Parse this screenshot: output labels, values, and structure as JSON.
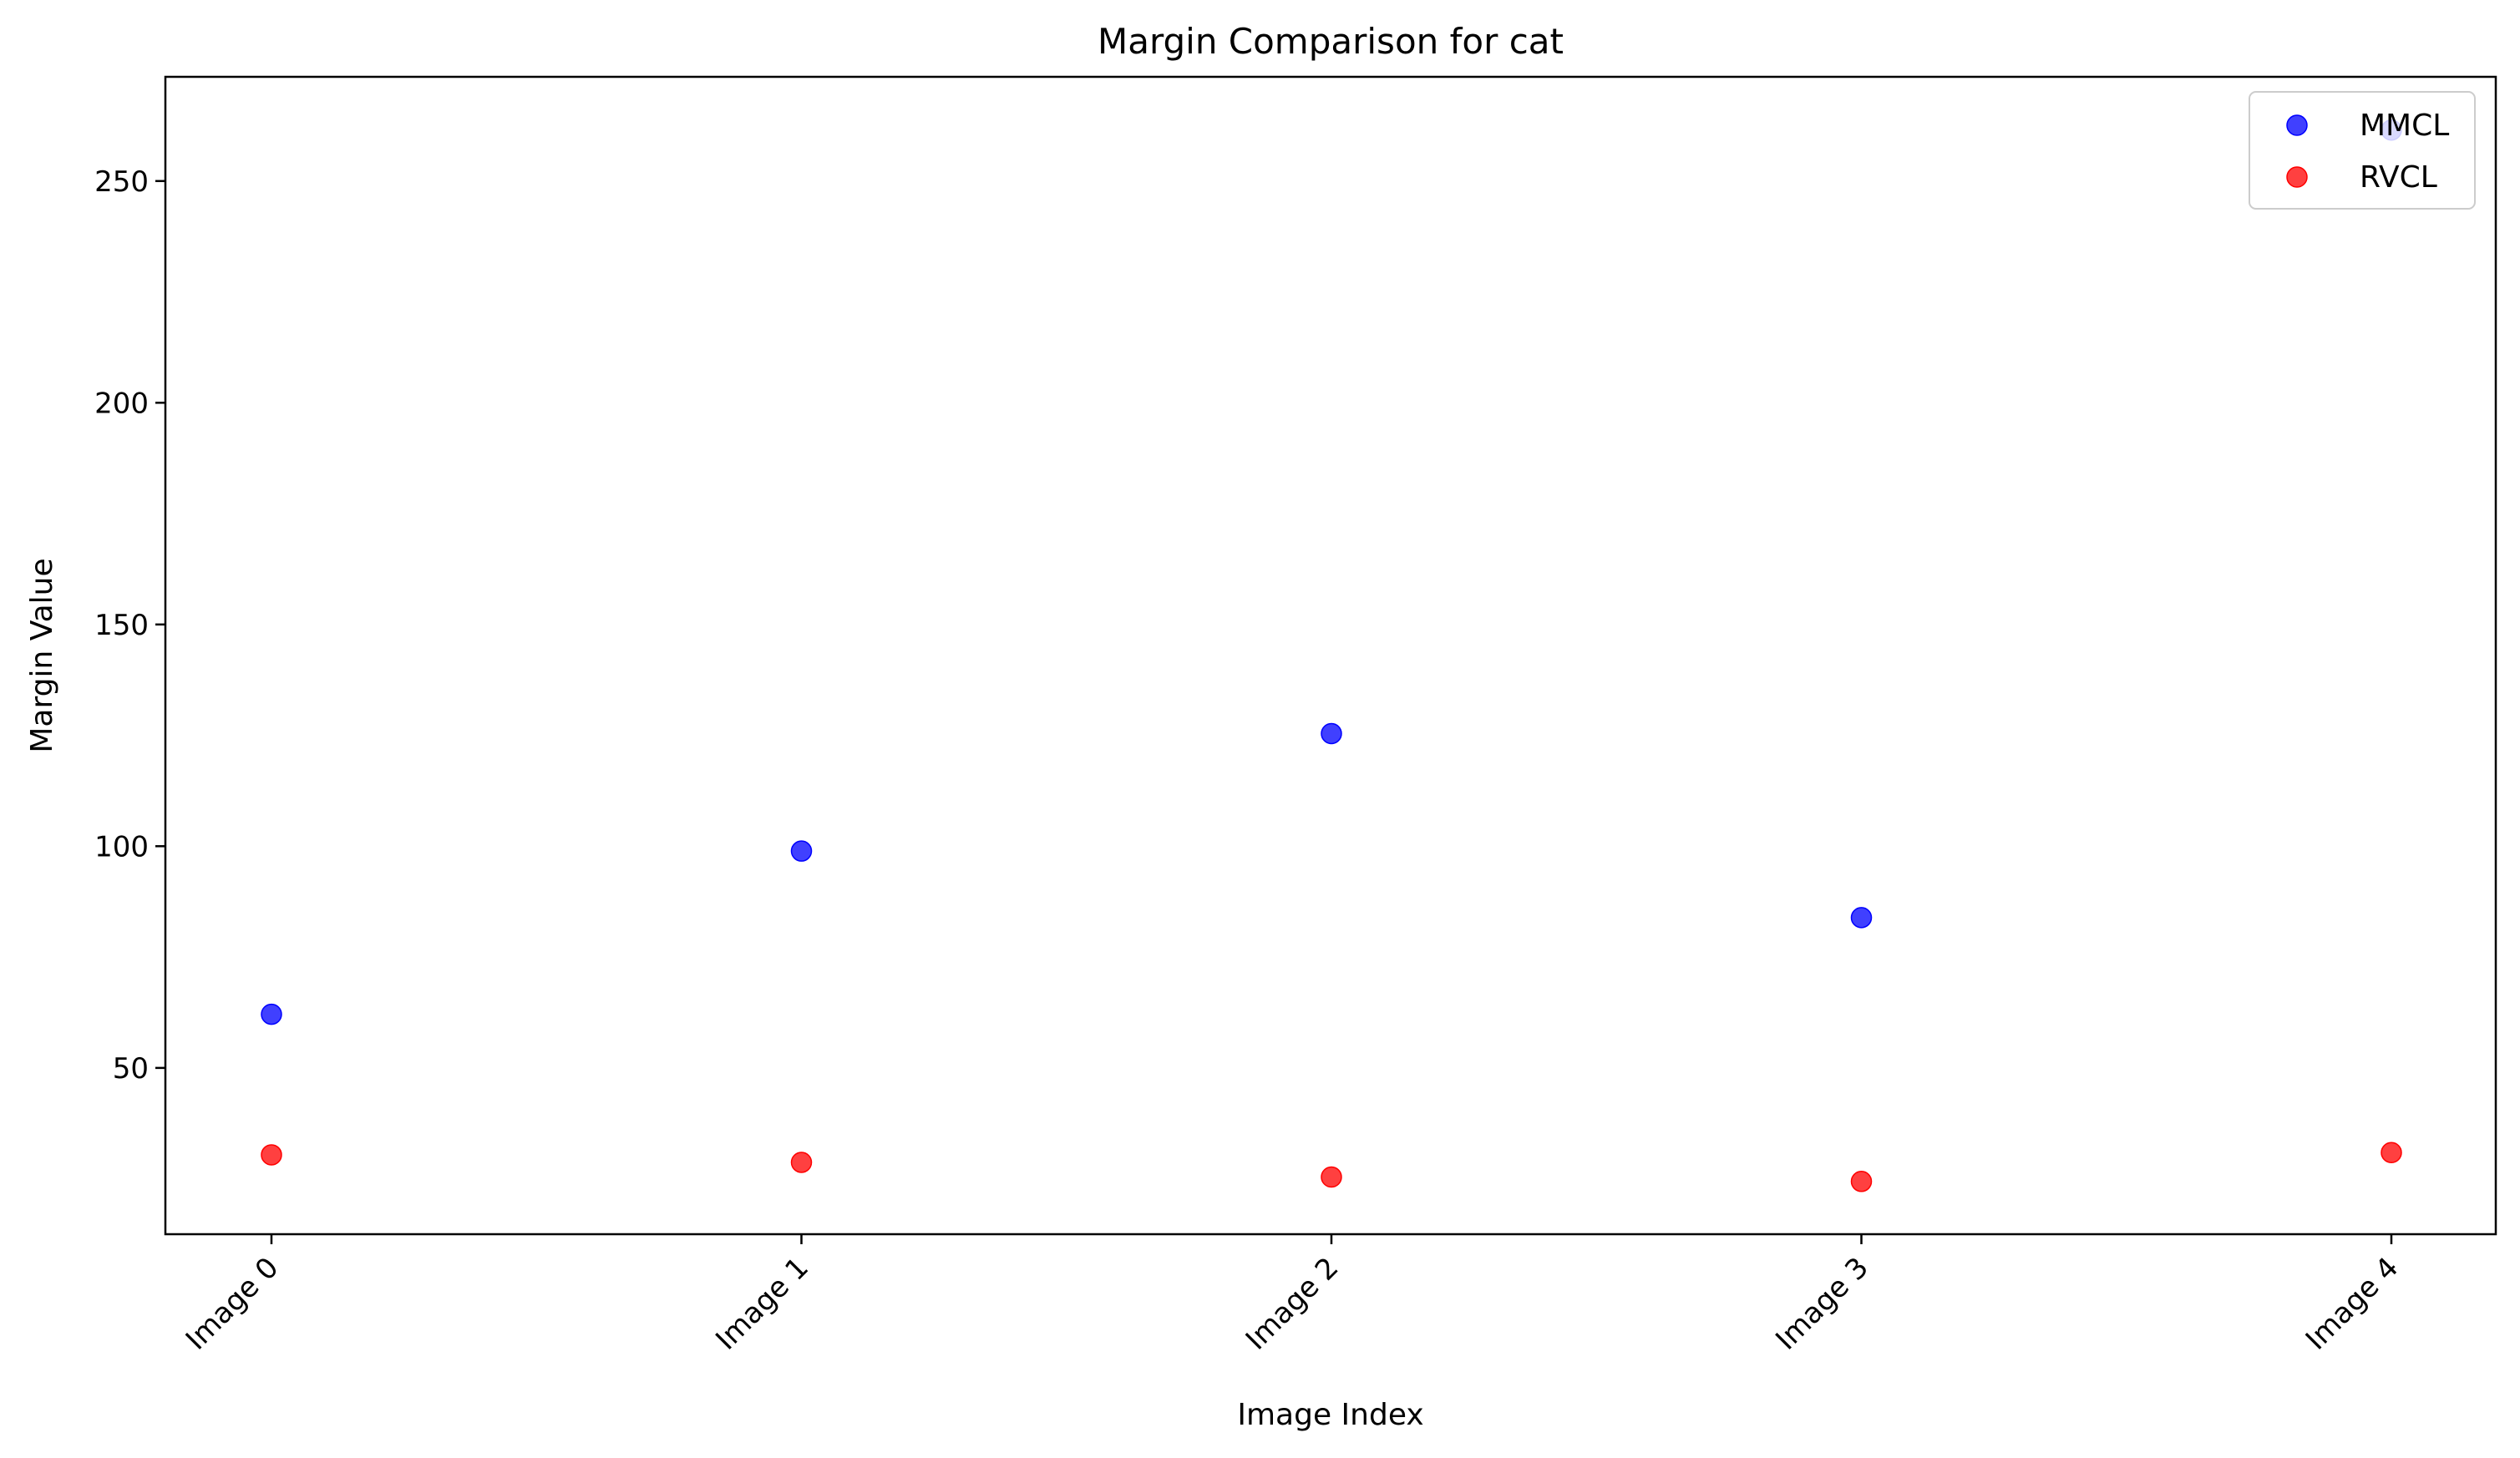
{
  "chart_data": {
    "type": "scatter",
    "title": "Margin Comparison for cat",
    "xlabel": "Image Index",
    "ylabel": "Margin Value",
    "categories": [
      "Image 0",
      "Image 1",
      "Image 2",
      "Image 3",
      "Image 4"
    ],
    "series": [
      {
        "name": "MMCL",
        "color": "#0000ff",
        "values": [
          62.1,
          98.9,
          125.4,
          83.9,
          261.5
        ]
      },
      {
        "name": "RVCL",
        "color": "#ff0000",
        "values": [
          30.4,
          28.7,
          25.4,
          24.4,
          30.9
        ]
      }
    ],
    "ylim": [
      12.5,
      273.5
    ],
    "yticks": [
      50,
      100,
      150,
      200,
      250
    ],
    "grid": false,
    "legend_position": "top-right",
    "marker_alpha": 0.75
  }
}
